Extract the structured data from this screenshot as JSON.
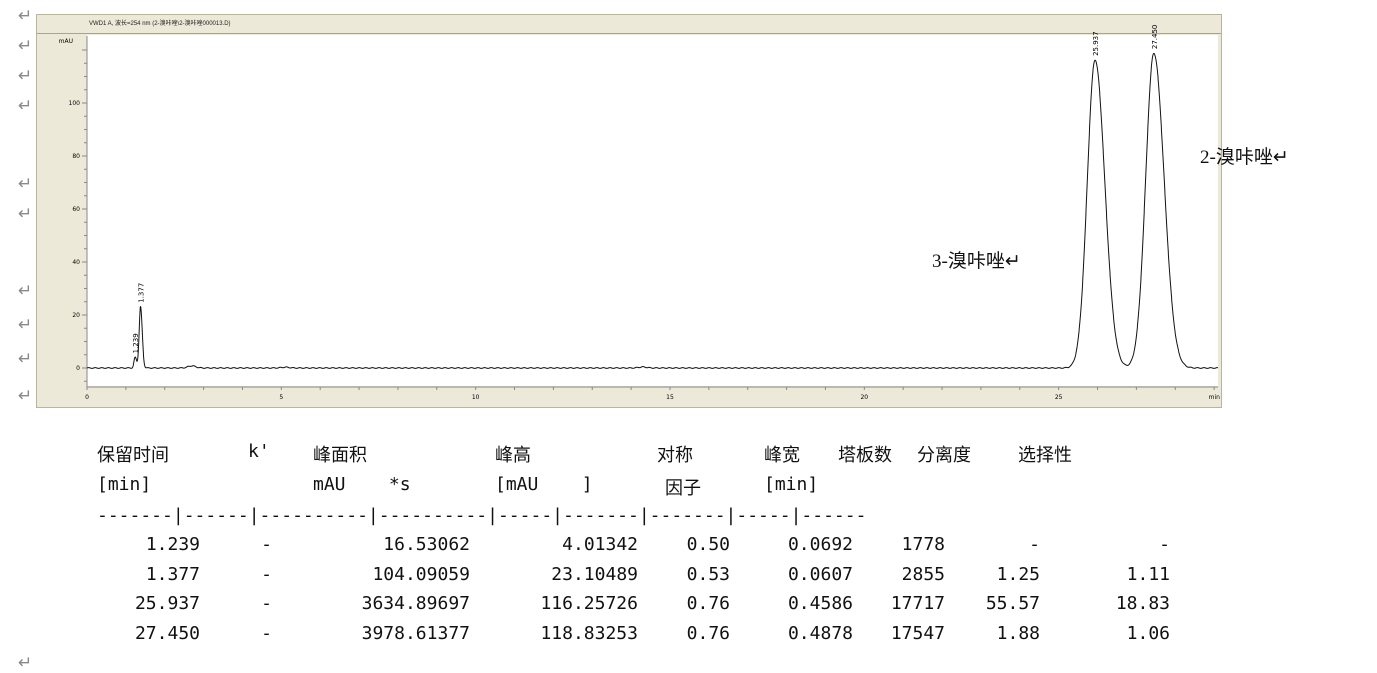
{
  "paragraph_mark": "↵",
  "chart_data": {
    "type": "line",
    "title": "VWD1 A, 波长=254 nm (2-溴咔唑\\2-溴咔唑000013.D)",
    "ylabel": "mAU",
    "xlabel": "min",
    "xlim": [
      0,
      29.1
    ],
    "ylim": [
      -7,
      125
    ],
    "xticks": [
      0,
      5,
      10,
      15,
      20,
      25
    ],
    "yticks": [
      0,
      20,
      40,
      60,
      80,
      100
    ],
    "grid": false,
    "peaks": [
      {
        "rt": 1.239,
        "height": 4.01,
        "label": "1.239"
      },
      {
        "rt": 1.377,
        "height": 23.1,
        "label": "1.377"
      },
      {
        "rt": 25.937,
        "height": 116.26,
        "label": "25.937"
      },
      {
        "rt": 27.45,
        "height": 118.83,
        "label": "27.450"
      }
    ],
    "minor_bumps": [
      {
        "rt": 2.7,
        "height": 0.8
      },
      {
        "rt": 5.1,
        "height": 0.3
      },
      {
        "rt": 14.3,
        "height": 0.4
      }
    ]
  },
  "annotations": {
    "peak2": "2-溴咔唑↵",
    "peak1": "3-溴咔唑↵"
  },
  "table": {
    "headers1": [
      "保留时间",
      "k'",
      "峰面积",
      "峰高",
      "对称",
      "峰宽",
      "塔板数",
      "分离度",
      "选择性"
    ],
    "headers2": [
      "[min]",
      "mAU    *s",
      "[mAU    ]",
      "因子",
      "[min]"
    ],
    "separator": "-------|------|----------|----------|-----|-------|-------|-----|------",
    "rows": [
      [
        "1.239",
        "-",
        "16.53062",
        "4.01342",
        "0.50",
        "0.0692",
        "1778",
        "-",
        "-"
      ],
      [
        "1.377",
        "-",
        "104.09059",
        "23.10489",
        "0.53",
        "0.0607",
        "2855",
        "1.25",
        "1.11"
      ],
      [
        "25.937",
        "-",
        "3634.89697",
        "116.25726",
        "0.76",
        "0.4586",
        "17717",
        "55.57",
        "18.83"
      ],
      [
        "27.450",
        "-",
        "3978.61377",
        "118.83253",
        "0.76",
        "0.4878",
        "17547",
        "1.88",
        "1.06"
      ]
    ]
  }
}
